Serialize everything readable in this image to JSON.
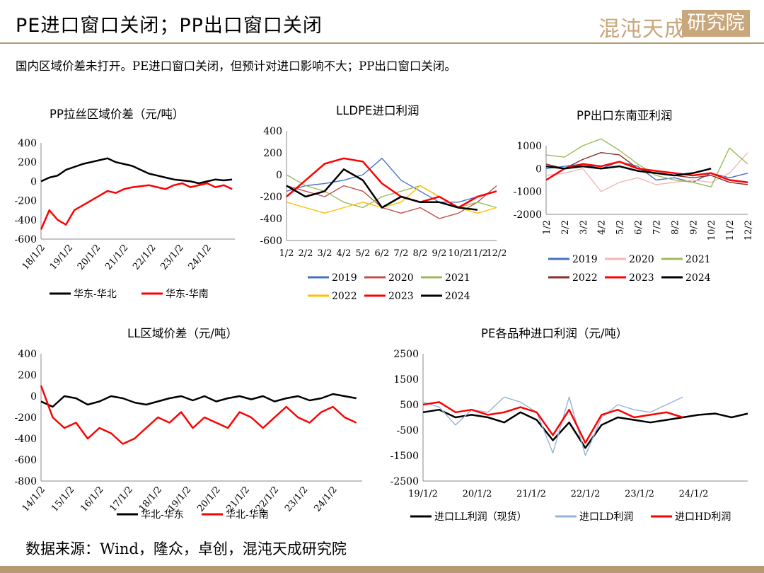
{
  "page": {
    "title": "PE进口窗口关闭；PP出口窗口关闭",
    "logo_left": "混沌天成",
    "logo_right": "研究院",
    "subtitle": "国内区域价差未打开。PE进口窗口关闭，但预计对进口影响不大；PP出口窗口关闭。",
    "source": "数据来源：Wind，隆众，卓创，混沌天成研究院"
  },
  "chart_data": [
    {
      "id": "pp-spread",
      "type": "line",
      "title": "PP拉丝区域价差（元/吨）",
      "x_ticks": [
        "18/1/2",
        "19/1/2",
        "20/1/2",
        "21/1/2",
        "22/1/2",
        "23/1/2",
        "24/1/2"
      ],
      "y_ticks": [
        400,
        200,
        0,
        -200,
        -400,
        -600
      ],
      "ylim": [
        -600,
        400
      ],
      "series": [
        {
          "name": "华东-华北",
          "color": "#000000",
          "x": [
            0,
            0.3,
            0.6,
            0.9,
            1.2,
            1.5,
            1.8,
            2.1,
            2.4,
            2.7,
            3.0,
            3.3,
            3.6,
            3.9,
            4.2,
            4.5,
            4.8,
            5.1,
            5.4,
            5.7,
            6.0,
            6.3,
            6.6,
            6.9
          ],
          "y": [
            0,
            40,
            60,
            120,
            150,
            180,
            200,
            220,
            240,
            200,
            180,
            160,
            120,
            80,
            60,
            40,
            20,
            10,
            0,
            -20,
            0,
            20,
            10,
            20
          ]
        },
        {
          "name": "华东-华南",
          "color": "#ff0000",
          "x": [
            0,
            0.3,
            0.6,
            0.9,
            1.2,
            1.5,
            1.8,
            2.1,
            2.4,
            2.7,
            3.0,
            3.3,
            3.6,
            3.9,
            4.2,
            4.5,
            4.8,
            5.1,
            5.4,
            5.7,
            6.0,
            6.3,
            6.6,
            6.9
          ],
          "y": [
            -500,
            -300,
            -400,
            -450,
            -300,
            -250,
            -200,
            -150,
            -100,
            -120,
            -80,
            -60,
            -50,
            -40,
            -60,
            -80,
            -40,
            -20,
            -60,
            -40,
            -20,
            -60,
            -40,
            -80
          ]
        }
      ]
    },
    {
      "id": "lldpe-profit",
      "type": "line",
      "title": "LLDPE进口利润",
      "x_ticks": [
        "1/2",
        "2/2",
        "3/2",
        "4/2",
        "5/2",
        "6/2",
        "7/2",
        "8/2",
        "9/2",
        "10/2",
        "11/2",
        "12/2"
      ],
      "y_ticks": [
        400,
        200,
        0,
        -200,
        -400,
        -600
      ],
      "ylim": [
        -600,
        400
      ],
      "series": [
        {
          "name": "2019",
          "color": "#4472c4",
          "x": [
            0,
            1,
            2,
            3,
            4,
            5,
            6,
            7,
            8,
            9,
            10,
            11
          ],
          "y": [
            -150,
            -100,
            -80,
            -50,
            0,
            150,
            -50,
            -150,
            -250,
            -250,
            -200,
            -150
          ]
        },
        {
          "name": "2020",
          "color": "#c0504d",
          "x": [
            0,
            1,
            2,
            3,
            4,
            5,
            6,
            7,
            8,
            9,
            10,
            11
          ],
          "y": [
            -100,
            -150,
            -200,
            -100,
            -150,
            -300,
            -350,
            -300,
            -400,
            -350,
            -250,
            -100
          ]
        },
        {
          "name": "2021",
          "color": "#9bbb59",
          "x": [
            0,
            1,
            2,
            3,
            4,
            5,
            6,
            7,
            8,
            9,
            10,
            11
          ],
          "y": [
            0,
            -100,
            -150,
            -250,
            -300,
            -200,
            -150,
            -100,
            -200,
            -300,
            -250,
            -300
          ]
        },
        {
          "name": "2022",
          "color": "#ffc000",
          "x": [
            0,
            1,
            2,
            3,
            4,
            5,
            6,
            7,
            8,
            9,
            10,
            11
          ],
          "y": [
            -250,
            -300,
            -350,
            -300,
            -250,
            -300,
            -250,
            -100,
            -200,
            -300,
            -350,
            -300
          ]
        },
        {
          "name": "2023",
          "color": "#ff0000",
          "x": [
            0,
            1,
            2,
            3,
            4,
            5,
            6,
            7,
            8,
            9,
            10,
            11
          ],
          "y": [
            -200,
            -50,
            100,
            150,
            120,
            -80,
            -200,
            -250,
            -200,
            -300,
            -200,
            -150
          ]
        },
        {
          "name": "2024",
          "color": "#000000",
          "x": [
            0,
            1,
            2,
            3,
            4,
            5,
            6,
            7,
            8,
            9,
            10
          ],
          "y": [
            -100,
            -200,
            -150,
            50,
            -50,
            -300,
            -200,
            -250,
            -250,
            -300,
            -320
          ]
        }
      ]
    },
    {
      "id": "pp-export",
      "type": "line",
      "title": "PP出口东南亚利润",
      "x_ticks": [
        "1/2",
        "2/2",
        "3/2",
        "4/2",
        "5/2",
        "6/2",
        "7/2",
        "8/2",
        "9/2",
        "10/2",
        "11/2",
        "12/2"
      ],
      "y_ticks": [
        1000,
        0,
        -1000,
        -2000
      ],
      "ylim": [
        -2000,
        1000
      ],
      "series": [
        {
          "name": "2019",
          "color": "#4472c4",
          "x": [
            0,
            1,
            2,
            3,
            4,
            5,
            6,
            7,
            8,
            9,
            10,
            11
          ],
          "y": [
            0,
            100,
            200,
            0,
            300,
            100,
            -500,
            -400,
            -600,
            -200,
            -400,
            -200
          ]
        },
        {
          "name": "2020",
          "color": "#f4b6b6",
          "x": [
            0,
            1,
            2,
            3,
            4,
            5,
            6,
            7,
            8,
            9,
            10,
            11
          ],
          "y": [
            -300,
            -200,
            0,
            -1000,
            -600,
            -400,
            -700,
            -600,
            -500,
            -600,
            -200,
            700
          ]
        },
        {
          "name": "2021",
          "color": "#9bbb59",
          "x": [
            0,
            1,
            2,
            3,
            4,
            5,
            6,
            7,
            8,
            9,
            10,
            11
          ],
          "y": [
            600,
            500,
            1000,
            1300,
            800,
            200,
            -300,
            -500,
            -600,
            -800,
            900,
            200
          ]
        },
        {
          "name": "2022",
          "color": "#8b2c2c",
          "x": [
            0,
            1,
            2,
            3,
            4,
            5,
            6,
            7,
            8,
            9,
            10,
            11
          ],
          "y": [
            200,
            0,
            400,
            700,
            600,
            0,
            -200,
            -300,
            -400,
            -300,
            -600,
            -700
          ]
        },
        {
          "name": "2023",
          "color": "#ff0000",
          "x": [
            0,
            1,
            2,
            3,
            4,
            5,
            6,
            7,
            8,
            9,
            10,
            11
          ],
          "y": [
            -500,
            0,
            200,
            100,
            300,
            0,
            -100,
            -200,
            -300,
            -200,
            -500,
            -600
          ]
        },
        {
          "name": "2024",
          "color": "#000000",
          "x": [
            0,
            1,
            2,
            3,
            4,
            5,
            6,
            7,
            8,
            9
          ],
          "y": [
            100,
            0,
            100,
            0,
            100,
            -100,
            -200,
            -300,
            -200,
            0
          ]
        }
      ]
    },
    {
      "id": "ll-spread",
      "type": "line",
      "title": "LL区域价差（元/吨）",
      "x_ticks": [
        "14/1/2",
        "15/1/2",
        "16/1/2",
        "17/1/2",
        "18/1/2",
        "19/1/2",
        "20/1/2",
        "21/1/2",
        "22/1/2",
        "23/1/2",
        "24/1/2"
      ],
      "y_ticks": [
        400,
        200,
        0,
        -200,
        -400,
        -600,
        -800
      ],
      "ylim": [
        -800,
        400
      ],
      "series": [
        {
          "name": "华北-华东",
          "color": "#000000",
          "x": [
            0,
            0.4,
            0.8,
            1.2,
            1.6,
            2.0,
            2.4,
            2.8,
            3.2,
            3.6,
            4.0,
            4.4,
            4.8,
            5.2,
            5.6,
            6.0,
            6.4,
            6.8,
            7.2,
            7.6,
            8.0,
            8.4,
            8.8,
            9.2,
            9.6,
            10.0,
            10.4,
            10.8
          ],
          "y": [
            -50,
            -100,
            0,
            -20,
            -80,
            -50,
            0,
            -20,
            -60,
            -80,
            -50,
            -20,
            0,
            -40,
            0,
            -50,
            -20,
            0,
            -30,
            0,
            -50,
            -20,
            0,
            -40,
            -20,
            20,
            0,
            -20
          ]
        },
        {
          "name": "华北-华南",
          "color": "#ff0000",
          "x": [
            0,
            0.4,
            0.8,
            1.2,
            1.6,
            2.0,
            2.4,
            2.8,
            3.2,
            3.6,
            4.0,
            4.4,
            4.8,
            5.2,
            5.6,
            6.0,
            6.4,
            6.8,
            7.2,
            7.6,
            8.0,
            8.4,
            8.8,
            9.2,
            9.6,
            10.0,
            10.4,
            10.8
          ],
          "y": [
            100,
            -200,
            -300,
            -250,
            -400,
            -300,
            -350,
            -450,
            -400,
            -300,
            -200,
            -250,
            -150,
            -300,
            -200,
            -250,
            -300,
            -150,
            -200,
            -300,
            -200,
            -100,
            -200,
            -250,
            -150,
            -100,
            -200,
            -250
          ]
        }
      ]
    },
    {
      "id": "pe-import-profit",
      "type": "line",
      "title": "PE各品种进口利润（元/吨）",
      "x_ticks": [
        "19/1/2",
        "20/1/2",
        "21/1/2",
        "22/1/2",
        "23/1/2",
        "24/1/2"
      ],
      "y_ticks": [
        2500,
        1500,
        500,
        -500,
        -1500,
        -2500
      ],
      "ylim": [
        -2500,
        2500
      ],
      "series": [
        {
          "name": "进口LL利润（现货）",
          "color": "#000000",
          "x": [
            0,
            0.3,
            0.6,
            0.9,
            1.2,
            1.5,
            1.8,
            2.1,
            2.4,
            2.7,
            3.0,
            3.3,
            3.6,
            3.9,
            4.2,
            4.5,
            4.8,
            5.1,
            5.4,
            5.7,
            6.0
          ],
          "y": [
            200,
            300,
            0,
            100,
            0,
            -200,
            200,
            -100,
            -900,
            -200,
            -1200,
            -300,
            0,
            -100,
            -200,
            -100,
            0,
            100,
            150,
            0,
            150
          ]
        },
        {
          "name": "进口LD利润",
          "color": "#95b3d7",
          "x": [
            0,
            0.3,
            0.6,
            0.9,
            1.2,
            1.5,
            1.8,
            2.1,
            2.4,
            2.7,
            3.0,
            3.3,
            3.6,
            3.9,
            4.2,
            4.5,
            4.8
          ],
          "y": [
            600,
            400,
            -300,
            300,
            200,
            800,
            600,
            200,
            -1400,
            800,
            -1500,
            0,
            500,
            300,
            200,
            500,
            800
          ]
        },
        {
          "name": "进口HD利润",
          "color": "#ff0000",
          "x": [
            0,
            0.3,
            0.6,
            0.9,
            1.2,
            1.5,
            1.8,
            2.1,
            2.4,
            2.7,
            3.0,
            3.3,
            3.6,
            3.9,
            4.2,
            4.5,
            4.8
          ],
          "y": [
            500,
            600,
            200,
            300,
            100,
            200,
            400,
            200,
            -700,
            300,
            -1000,
            100,
            300,
            0,
            100,
            200,
            0
          ]
        }
      ]
    }
  ]
}
